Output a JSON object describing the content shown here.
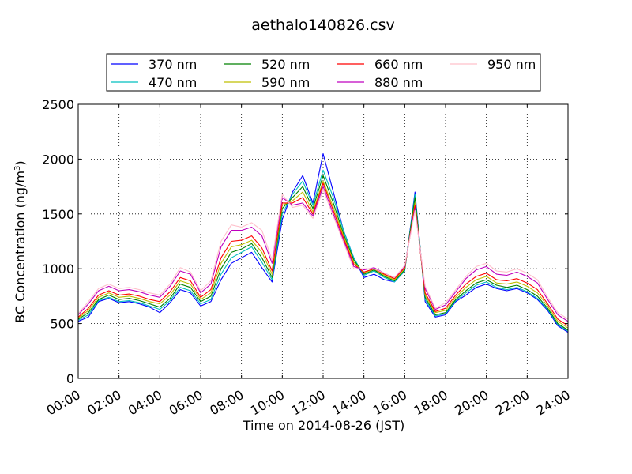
{
  "chart_data": {
    "type": "line",
    "title": "aethalo140826.csv",
    "xlabel": "Time on 2014-08-26 (JST)",
    "ylabel_main": "BC Concentration (ng/m",
    "ylabel_sup": "3",
    "ylabel_close": ")",
    "xlim": [
      0,
      24
    ],
    "ylim": [
      0,
      2500
    ],
    "x_unit": "hours",
    "x_ticks": [
      {
        "value": 0,
        "label": "00:00"
      },
      {
        "value": 2,
        "label": "02:00"
      },
      {
        "value": 4,
        "label": "04:00"
      },
      {
        "value": 6,
        "label": "06:00"
      },
      {
        "value": 8,
        "label": "08:00"
      },
      {
        "value": 10,
        "label": "10:00"
      },
      {
        "value": 12,
        "label": "12:00"
      },
      {
        "value": 14,
        "label": "14:00"
      },
      {
        "value": 16,
        "label": "16:00"
      },
      {
        "value": 18,
        "label": "18:00"
      },
      {
        "value": 20,
        "label": "20:00"
      },
      {
        "value": 22,
        "label": "22:00"
      },
      {
        "value": 24,
        "label": "24:00"
      }
    ],
    "y_ticks": [
      {
        "value": 0,
        "label": "0"
      },
      {
        "value": 500,
        "label": "500"
      },
      {
        "value": 1000,
        "label": "1000"
      },
      {
        "value": 1500,
        "label": "1500"
      },
      {
        "value": 2000,
        "label": "2000"
      },
      {
        "value": 2500,
        "label": "2500"
      }
    ],
    "grid": true,
    "grid_style": "dotted",
    "legend_position": "top-center",
    "legend_columns": 4,
    "x": [
      0.0,
      0.5,
      1.0,
      1.5,
      2.0,
      2.5,
      3.0,
      3.5,
      4.0,
      4.5,
      5.0,
      5.5,
      6.0,
      6.5,
      7.0,
      7.5,
      8.0,
      8.5,
      9.0,
      9.5,
      10.0,
      10.5,
      11.0,
      11.5,
      12.0,
      12.5,
      13.0,
      13.5,
      14.0,
      14.5,
      15.0,
      15.5,
      16.0,
      16.5,
      17.0,
      17.5,
      18.0,
      18.5,
      19.0,
      19.5,
      20.0,
      20.5,
      21.0,
      21.5,
      22.0,
      22.5,
      23.0,
      23.5,
      24.0
    ],
    "series": [
      {
        "name": "370 nm",
        "color": "#0000ff",
        "values": [
          520,
          560,
          700,
          730,
          690,
          700,
          680,
          650,
          600,
          690,
          810,
          780,
          660,
          700,
          900,
          1050,
          1100,
          1150,
          1010,
          880,
          1450,
          1700,
          1850,
          1600,
          2050,
          1700,
          1350,
          1100,
          920,
          950,
          900,
          880,
          980,
          1700,
          700,
          560,
          580,
          700,
          760,
          830,
          860,
          820,
          800,
          820,
          780,
          720,
          620,
          480,
          420
        ]
      },
      {
        "name": "470 nm",
        "color": "#00bfbf",
        "values": [
          530,
          580,
          710,
          740,
          700,
          710,
          690,
          660,
          630,
          710,
          830,
          800,
          680,
          720,
          950,
          1100,
          1150,
          1200,
          1060,
          900,
          1500,
          1680,
          1800,
          1580,
          1900,
          1650,
          1350,
          1100,
          940,
          980,
          920,
          880,
          980,
          1680,
          720,
          570,
          590,
          710,
          780,
          850,
          880,
          830,
          810,
          830,
          790,
          730,
          630,
          490,
          430
        ]
      },
      {
        "name": "520 nm",
        "color": "#008000",
        "values": [
          540,
          600,
          720,
          760,
          720,
          730,
          710,
          680,
          650,
          730,
          860,
          830,
          700,
          750,
          1000,
          1150,
          1180,
          1230,
          1100,
          920,
          1550,
          1650,
          1750,
          1550,
          1850,
          1600,
          1320,
          1080,
          950,
          990,
          930,
          890,
          990,
          1650,
          740,
          580,
          600,
          720,
          800,
          870,
          900,
          850,
          830,
          850,
          810,
          750,
          640,
          500,
          440
        ]
      },
      {
        "name": "590 nm",
        "color": "#bfbf00",
        "values": [
          550,
          620,
          740,
          780,
          740,
          750,
          730,
          700,
          680,
          760,
          890,
          860,
          720,
          780,
          1050,
          1200,
          1220,
          1260,
          1150,
          950,
          1580,
          1620,
          1700,
          1520,
          1800,
          1560,
          1300,
          1060,
          960,
          1000,
          940,
          900,
          1000,
          1600,
          760,
          600,
          620,
          740,
          830,
          900,
          930,
          870,
          860,
          880,
          840,
          780,
          660,
          520,
          460
        ]
      },
      {
        "name": "660 nm",
        "color": "#ff0000",
        "values": [
          560,
          640,
          760,
          800,
          760,
          770,
          750,
          720,
          700,
          790,
          920,
          890,
          740,
          810,
          1100,
          1250,
          1260,
          1300,
          1190,
          980,
          1600,
          1600,
          1650,
          1500,
          1780,
          1530,
          1280,
          1040,
          970,
          1000,
          950,
          910,
          1010,
          1580,
          780,
          610,
          640,
          760,
          860,
          930,
          960,
          900,
          890,
          910,
          870,
          810,
          680,
          540,
          480
        ]
      },
      {
        "name": "880 nm",
        "color": "#bf00bf",
        "values": [
          580,
          680,
          800,
          840,
          800,
          810,
          790,
          760,
          740,
          840,
          980,
          950,
          780,
          860,
          1200,
          1350,
          1350,
          1380,
          1300,
          1050,
          1650,
          1580,
          1600,
          1480,
          1750,
          1500,
          1260,
          1020,
          990,
          1010,
          960,
          920,
          1020,
          1550,
          820,
          630,
          670,
          790,
          910,
          990,
          1020,
          950,
          940,
          970,
          930,
          870,
          720,
          580,
          520
        ]
      },
      {
        "name": "950 nm",
        "color": "#ffc0cb",
        "values": [
          590,
          700,
          820,
          860,
          820,
          830,
          810,
          780,
          760,
          860,
          1010,
          970,
          800,
          890,
          1250,
          1400,
          1380,
          1420,
          1350,
          1080,
          1680,
          1560,
          1580,
          1460,
          1720,
          1480,
          1240,
          1000,
          1000,
          1000,
          960,
          920,
          1030,
          1530,
          840,
          640,
          690,
          810,
          930,
          1020,
          1050,
          980,
          970,
          1000,
          960,
          900,
          740,
          600,
          540
        ]
      }
    ]
  }
}
